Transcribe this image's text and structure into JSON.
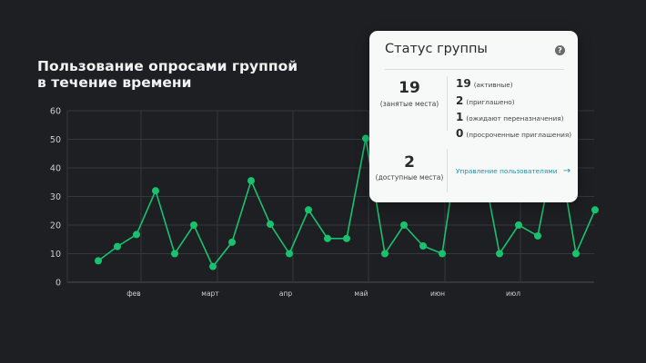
{
  "chart_data": {
    "type": "line",
    "title": "Пользование опросами группой в течение времени",
    "xlabel": "",
    "ylabel": "",
    "ylim": [
      0,
      60
    ],
    "yticks": [
      0,
      10,
      20,
      30,
      40,
      50,
      60
    ],
    "x_tick_labels": [
      "фев",
      "март",
      "апр",
      "май",
      "июн",
      "июл"
    ],
    "grid": true,
    "legend": null,
    "series_color": "#18c26f",
    "values": [
      7.5,
      12.5,
      16.7,
      32,
      10,
      20,
      5.5,
      14,
      35.5,
      20.3,
      10,
      25.3,
      15.3,
      15.3,
      50.3,
      10,
      20,
      12.7,
      10,
      55,
      45,
      10,
      20,
      16.2,
      50,
      10,
      25.3
    ]
  },
  "card": {
    "title": "Статус группы",
    "help_icon": "?",
    "occupied": {
      "value": "19",
      "label": "(занятые места)"
    },
    "available": {
      "value": "2",
      "label": "(доступные места)"
    },
    "breakdown": [
      {
        "value": "19",
        "label": "(активные)"
      },
      {
        "value": "2",
        "label": "(приглашено)"
      },
      {
        "value": "1",
        "label": "(ожидают переназначения)"
      },
      {
        "value": "0",
        "label": "(просроченные приглашения)"
      }
    ],
    "manage_link": "Управление пользователями",
    "manage_arrow": "→"
  }
}
